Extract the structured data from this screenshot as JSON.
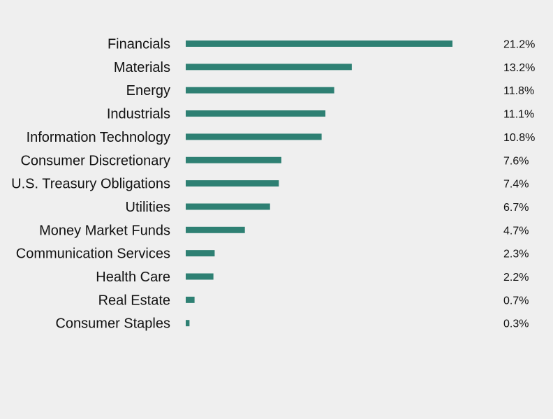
{
  "chart_data": {
    "type": "bar",
    "orientation": "horizontal",
    "categories": [
      "Financials",
      "Materials",
      "Energy",
      "Industrials",
      "Information Technology",
      "Consumer Discretionary",
      "U.S. Treasury Obligations",
      "Utilities",
      "Money Market Funds",
      "Communication Services",
      "Health Care",
      "Real Estate",
      "Consumer Staples"
    ],
    "values": [
      21.2,
      13.2,
      11.8,
      11.1,
      10.8,
      7.6,
      7.4,
      6.7,
      4.7,
      2.3,
      2.2,
      0.7,
      0.3
    ],
    "value_labels": [
      "21.2%",
      "13.2%",
      "11.8%",
      "11.1%",
      "10.8%",
      "7.6%",
      "7.4%",
      "6.7%",
      "4.7%",
      "2.3%",
      "2.2%",
      "0.7%",
      "0.3%"
    ],
    "bar_color": "#2e8073",
    "background_color": "#efefef",
    "grid": false,
    "legend": "none"
  }
}
